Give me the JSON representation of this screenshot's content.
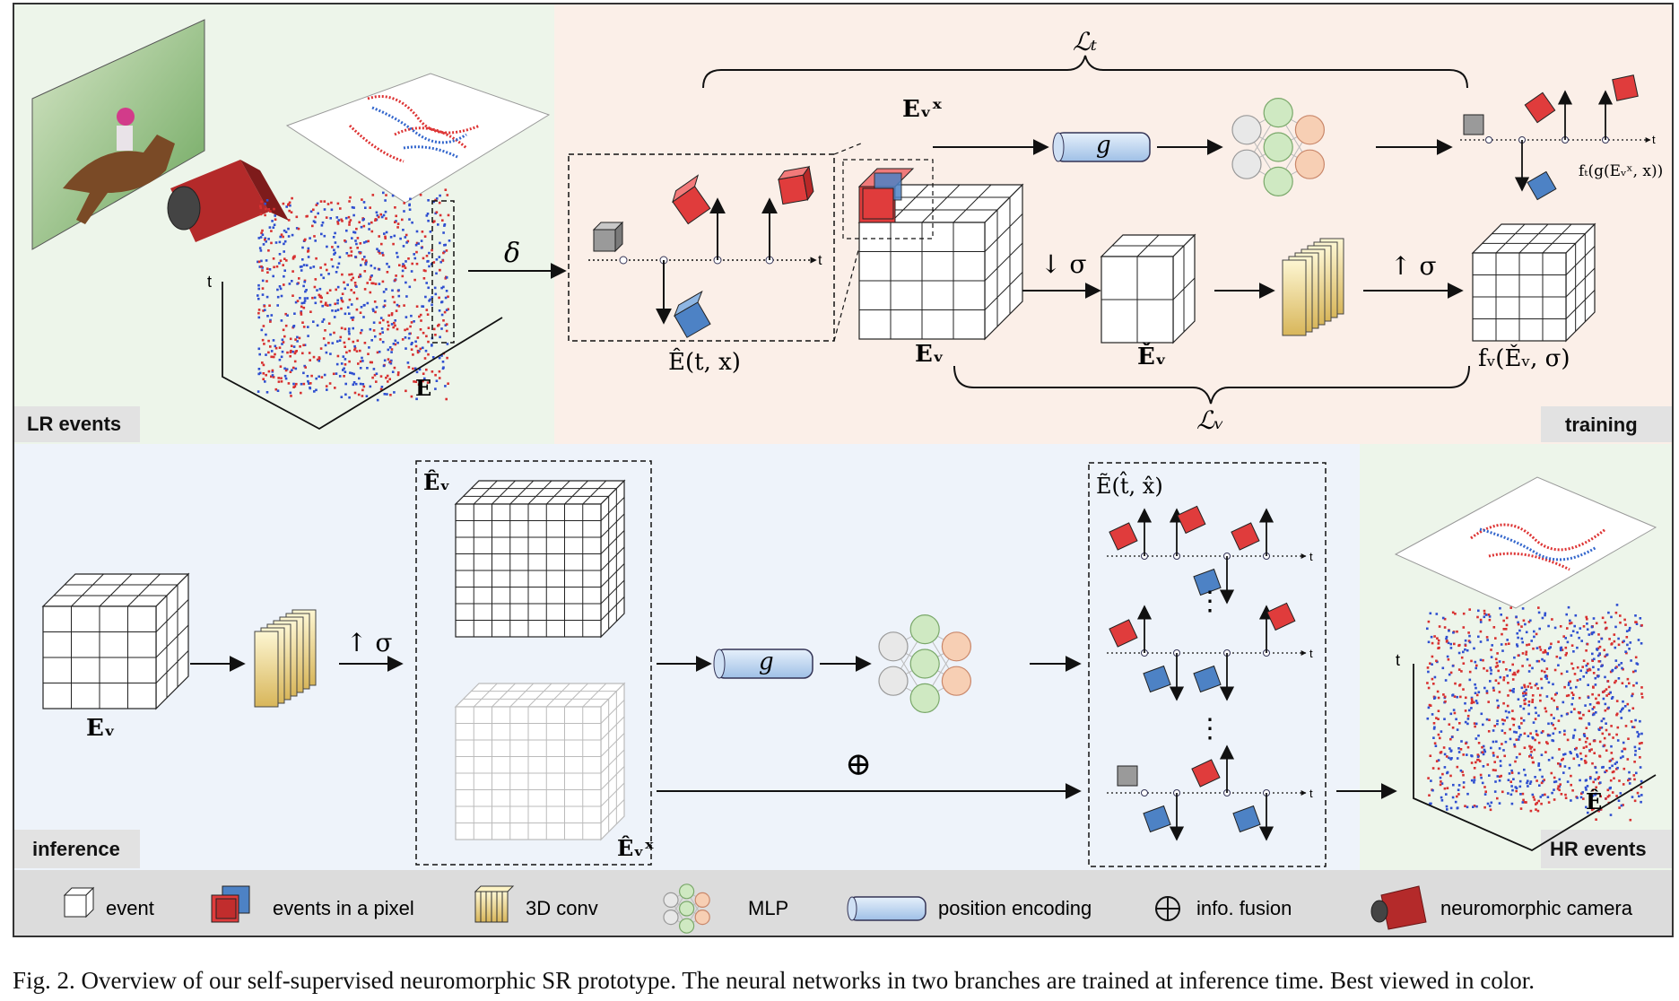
{
  "panels": {
    "lr_events": "LR events",
    "training": "training",
    "inference": "inference",
    "hr_events": "HR events"
  },
  "labels": {
    "E_axis": "E",
    "t_axis": "t",
    "delta": "δ",
    "E_hat_tx": "Ê(t, x)",
    "Ev_x": "Eᵥˣ",
    "g": "g",
    "Ev": "Eᵥ",
    "down_sigma": "↓ σ",
    "Ev_check": "Ěᵥ",
    "up_sigma": "↑ σ",
    "fv": "fᵥ(Ěᵥ, σ)",
    "ft": "fₜ(g(Eᵥˣ, x))",
    "Lt": "ℒₜ",
    "Lv": "ℒᵥ",
    "Ev_hat": "Êᵥ",
    "Ev_hat_x": "Êᵥˣ",
    "E_tilde": "Ẽ(t̂, x̂)",
    "E_hat": "Ê",
    "dots": "⋮",
    "oplus": "⊕"
  },
  "legend": [
    {
      "icon": "event-cube-icon",
      "label": "event"
    },
    {
      "icon": "pixel-events-icon",
      "label": "events in a pixel"
    },
    {
      "icon": "conv3d-icon",
      "label": "3D conv"
    },
    {
      "icon": "mlp-icon",
      "label": "MLP"
    },
    {
      "icon": "position-encoding-icon",
      "label": "position encoding"
    },
    {
      "icon": "info-fusion-icon",
      "label": "info. fusion"
    },
    {
      "icon": "camera-icon",
      "label": "neuromorphic camera"
    }
  ],
  "colors": {
    "lr_bg": "#edf5ea",
    "training_bg": "#fbefe8",
    "inference_bg": "#eef3fa",
    "hr_bg": "#edf5ea",
    "legend_bg": "#dcdcdc",
    "event_red": "#e03c3c",
    "event_blue": "#4d82c5"
  },
  "caption": "Fig. 2.  Overview of our self-supervised neuromorphic SR prototype. The neural networks in two branches are trained at inference time. Best viewed in color."
}
